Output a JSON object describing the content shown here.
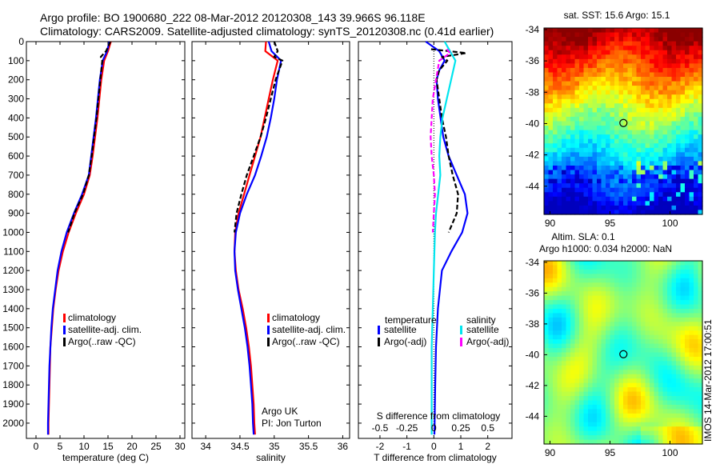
{
  "header": {
    "line1": "Argo profile: BO 1900680_222 08-Mar-2012 20120308_143 39.966S 96.118E",
    "line2": "Climatology: CARS2009. Satellite-adjusted climatology: synTS_20120308.nc (0.41d earlier)"
  },
  "colors": {
    "climatology": "#ff0000",
    "satellite": "#0000ff",
    "argo": "#000000",
    "sal_satellite": "#00e5ee",
    "sal_argo": "#ff00ff"
  },
  "side_text": {
    "vertical_label": "IMOS 14-Mar-2012 17:00:51",
    "argo_uk": "Argo UK",
    "pi": "PI: Jon Turton"
  },
  "chart_data": [
    {
      "type": "line",
      "panel": "temperature",
      "xlabel": "temperature (deg C)",
      "ylabel": "",
      "xlim": [
        -2,
        31
      ],
      "ylim": [
        2080,
        0
      ],
      "xticks": [
        0,
        5,
        10,
        15,
        20,
        25,
        30
      ],
      "yticks": [
        0,
        100,
        200,
        300,
        400,
        500,
        600,
        700,
        800,
        900,
        1000,
        1100,
        1200,
        1300,
        1400,
        1500,
        1600,
        1700,
        1800,
        1900,
        2000
      ],
      "grid": false,
      "legend": [
        "climatology",
        "satellite-adj. clim.",
        "Argo(..raw -QC)"
      ],
      "series": [
        {
          "name": "climatology",
          "color": "#ff0000",
          "depth": [
            0,
            50,
            100,
            200,
            300,
            400,
            500,
            600,
            700,
            800,
            900,
            1000,
            1100,
            1200,
            1300,
            1400,
            1500,
            1600,
            1700,
            1800,
            1900,
            2000,
            2060
          ],
          "values": [
            15.6,
            15.0,
            14.2,
            13.6,
            13.2,
            12.8,
            12.3,
            11.8,
            11.2,
            10.0,
            8.3,
            6.8,
            5.6,
            4.7,
            4.1,
            3.6,
            3.3,
            3.0,
            2.9,
            2.8,
            2.7,
            2.6,
            2.6
          ]
        },
        {
          "name": "satellite-adj. clim.",
          "color": "#0000ff",
          "depth": [
            0,
            50,
            100,
            200,
            300,
            400,
            500,
            600,
            700,
            800,
            900,
            1000,
            1100,
            1200,
            1300,
            1400,
            1500,
            1600,
            1700,
            1800,
            1900,
            2000,
            2060
          ],
          "values": [
            15.3,
            14.8,
            13.9,
            13.3,
            12.9,
            12.5,
            12.0,
            11.5,
            11.0,
            9.6,
            7.9,
            6.4,
            5.3,
            4.5,
            4.0,
            3.5,
            3.2,
            3.0,
            2.8,
            2.7,
            2.6,
            2.5,
            2.5
          ]
        },
        {
          "name": "Argo(..raw -QC)",
          "color": "#000000",
          "dashed": true,
          "depth": [
            0,
            50,
            80,
            100,
            200,
            300,
            400,
            500,
            600,
            700,
            800,
            900,
            1000
          ],
          "values": [
            15.5,
            14.6,
            13.5,
            13.8,
            13.4,
            13.0,
            12.6,
            12.1,
            11.6,
            11.0,
            9.8,
            8.0,
            6.7
          ]
        }
      ]
    },
    {
      "type": "line",
      "panel": "salinity",
      "xlabel": "salinity",
      "ylabel": "",
      "xlim": [
        33.8,
        36.1
      ],
      "ylim": [
        2080,
        0
      ],
      "xticks": [
        34,
        34.5,
        35,
        35.5,
        36
      ],
      "grid": false,
      "legend": [
        "climatology",
        "satellite-adj. clim.",
        "Argo(..raw -QC)"
      ],
      "series": [
        {
          "name": "climatology",
          "color": "#ff0000",
          "depth": [
            0,
            50,
            100,
            200,
            300,
            400,
            500,
            600,
            700,
            800,
            900,
            1000,
            1100,
            1200,
            1300,
            1400,
            1500,
            1600,
            1700,
            1800,
            1900,
            2000,
            2060
          ],
          "values": [
            34.88,
            34.87,
            35.05,
            34.98,
            34.92,
            34.86,
            34.8,
            34.72,
            34.64,
            34.56,
            34.48,
            34.43,
            34.42,
            34.44,
            34.48,
            34.54,
            34.59,
            34.63,
            34.66,
            34.68,
            34.7,
            34.71,
            34.72
          ]
        },
        {
          "name": "satellite-adj. clim.",
          "color": "#0000ff",
          "depth": [
            0,
            50,
            100,
            200,
            300,
            400,
            500,
            600,
            700,
            800,
            900,
            1000,
            1100,
            1200,
            1300,
            1400,
            1500,
            1600,
            1700,
            1800,
            1900,
            2000,
            2060
          ],
          "values": [
            34.92,
            34.96,
            35.1,
            35.04,
            35.0,
            34.95,
            34.89,
            34.81,
            34.72,
            34.6,
            34.5,
            34.44,
            34.42,
            34.43,
            34.47,
            34.52,
            34.57,
            34.61,
            34.64,
            34.66,
            34.68,
            34.69,
            34.7
          ]
        },
        {
          "name": "Argo(..raw -QC)",
          "color": "#000000",
          "dashed": true,
          "depth": [
            0,
            50,
            80,
            100,
            200,
            300,
            400,
            500,
            600,
            700,
            800,
            900,
            1000
          ],
          "values": [
            35.0,
            35.05,
            35.0,
            35.12,
            35.02,
            34.95,
            34.88,
            34.8,
            34.7,
            34.6,
            34.52,
            34.45,
            34.42
          ]
        }
      ]
    },
    {
      "type": "line",
      "panel": "difference",
      "xlabel": "T difference from climatology",
      "top_xlabel": "S difference from climatology",
      "xlim": [
        -2.8,
        2.9
      ],
      "ylim": [
        2080,
        0
      ],
      "xticks": [
        -2,
        -1,
        0,
        1,
        2
      ],
      "top_xticks": [
        -0.5,
        -0.25,
        0,
        0.25,
        0.5
      ],
      "top_xtick_labels": [
        "-0.5",
        "-0.25",
        "0",
        "0.25",
        "0.5"
      ],
      "grid": false,
      "legend_groups": {
        "temperature": {
          "title": "temperature",
          "items": [
            "satellite",
            "Argo(-adj)"
          ]
        },
        "salinity": {
          "title": "salinity",
          "items": [
            "satellite",
            "Argo(-adj)"
          ]
        }
      },
      "series": [
        {
          "name": "T satellite",
          "color": "#0000ff",
          "depth": [
            0,
            50,
            100,
            150,
            200,
            300,
            400,
            500,
            600,
            700,
            800,
            900,
            1000,
            1100,
            1200,
            1400,
            1600,
            1800,
            2000,
            2060
          ],
          "values": [
            -0.3,
            0.2,
            0.4,
            0.2,
            0.1,
            0.15,
            0.25,
            0.35,
            0.55,
            0.85,
            1.15,
            1.25,
            1.05,
            0.65,
            0.3,
            0.15,
            0.08,
            0.05,
            0.03,
            0.02
          ]
        },
        {
          "name": "T Argo(-adj)",
          "color": "#000000",
          "dashed": true,
          "depth": [
            40,
            60,
            80,
            100,
            150,
            200,
            300,
            400,
            500,
            600,
            700,
            800,
            900,
            1000
          ],
          "values": [
            -0.1,
            1.2,
            0.3,
            0.5,
            0.2,
            0.1,
            0.2,
            0.3,
            0.45,
            0.55,
            0.7,
            0.9,
            0.85,
            0.55
          ]
        },
        {
          "name": "S satellite",
          "color": "#00e5ee",
          "depth": [
            0,
            50,
            100,
            200,
            300,
            400,
            500,
            600,
            700,
            800,
            900,
            1000,
            1200,
            1400,
            1600,
            1800,
            2000,
            2060
          ],
          "values": [
            0.1,
            0.15,
            0.2,
            0.16,
            0.12,
            0.08,
            0.06,
            0.05,
            0.06,
            0.04,
            0.02,
            0.01,
            0.0,
            -0.01,
            -0.02,
            -0.02,
            -0.02,
            -0.02
          ]
        },
        {
          "name": "S Argo(-adj)",
          "color": "#ff00ff",
          "dashed": true,
          "depth": [
            40,
            60,
            100,
            200,
            300,
            400,
            500,
            600,
            700,
            800,
            900,
            1000
          ],
          "values": [
            0.12,
            0.15,
            0.05,
            0.02,
            -0.01,
            -0.02,
            -0.03,
            -0.02,
            0.0,
            0.01,
            0.0,
            -0.01
          ]
        }
      ]
    },
    {
      "type": "heatmap",
      "panel": "sst_map",
      "title": "sat. SST: 15.6 Argo: 15.1",
      "xlim": [
        89.5,
        102.7
      ],
      "ylim": [
        -45.8,
        -33.9
      ],
      "xticks": [
        90,
        95,
        100
      ],
      "yticks": [
        -34,
        -36,
        -38,
        -40,
        -42,
        -44
      ],
      "argo_position": {
        "lon": 96.118,
        "lat": -39.966
      }
    },
    {
      "type": "heatmap",
      "panel": "sla_map",
      "title_line1": "Altim. SLA: 0.1",
      "title_line2": "Argo h1000: 0.034 h2000: NaN",
      "xlim": [
        89.5,
        102.7
      ],
      "ylim": [
        -45.8,
        -33.9
      ],
      "xticks": [
        90,
        95,
        100
      ],
      "yticks": [
        -34,
        -36,
        -38,
        -40,
        -42,
        -44
      ],
      "argo_position": {
        "lon": 96.118,
        "lat": -39.966
      }
    }
  ]
}
